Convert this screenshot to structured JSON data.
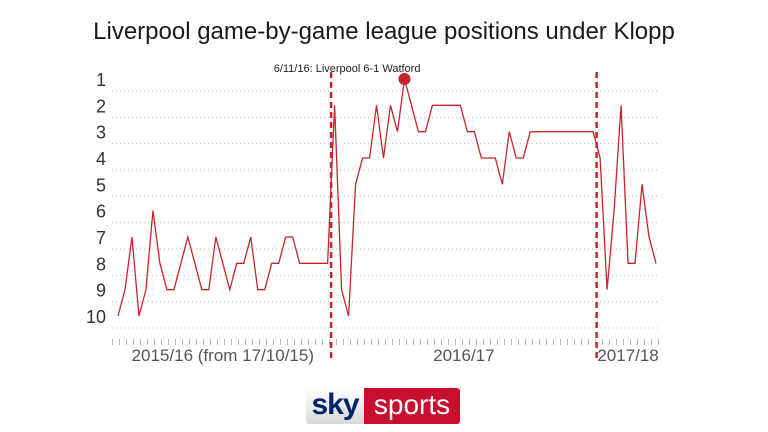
{
  "title": "Liverpool game-by-game league positions under Klopp",
  "logo": {
    "part1": "sky",
    "part2": "sports"
  },
  "chart_data": {
    "type": "line",
    "title": "Liverpool game-by-game league positions under Klopp",
    "ylim": [
      1,
      10
    ],
    "y_inverted": true,
    "yticks": [
      "1",
      "2",
      "3",
      "4",
      "5",
      "6",
      "7",
      "8",
      "9",
      "10"
    ],
    "grid": "horizontal-dotted",
    "line_color": "#c4262e",
    "seasons": [
      {
        "label": "2015/16 (from 17/10/15)",
        "start": 0
      },
      {
        "label": "2016/17",
        "start": 31
      },
      {
        "label": "2017/18",
        "start": 69
      }
    ],
    "annotation": {
      "label": "6/11/16: Liverpool 6-1 Watford",
      "index": 41
    },
    "series": [
      {
        "values": [
          10,
          9,
          7,
          10,
          9,
          6,
          8,
          9,
          9,
          8,
          7,
          8,
          9,
          9,
          7,
          8,
          9,
          8,
          8,
          7,
          9,
          9,
          8,
          8,
          7,
          7,
          8,
          8,
          8,
          8,
          8,
          2,
          9,
          10,
          5,
          4,
          4,
          2,
          4,
          2,
          3,
          1,
          2,
          3,
          3,
          2,
          2,
          2,
          2,
          2,
          3,
          3,
          4,
          4,
          4,
          5,
          3,
          4,
          4,
          3,
          3,
          3,
          3,
          3,
          3,
          3,
          3,
          3,
          3,
          4,
          9,
          6,
          2,
          8,
          8,
          5,
          7,
          8
        ]
      }
    ]
  }
}
